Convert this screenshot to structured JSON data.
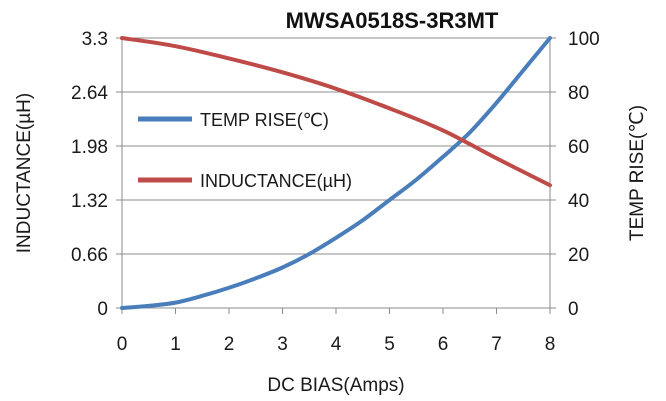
{
  "chart_data": {
    "type": "line",
    "title": "MWSA0518S-3R3MT",
    "xlabel": "DC  BIAS(Amps)",
    "ylabel_left": "INDUCTANCE(µH)",
    "ylabel_right": "TEMP RISE(℃)",
    "xlim": [
      0,
      8
    ],
    "ylim_left": [
      0,
      3.3
    ],
    "ylim_right": [
      0,
      100
    ],
    "x_ticks": [
      "0",
      "1",
      "2",
      "3",
      "4",
      "5",
      "6",
      "7",
      "8"
    ],
    "y_left_ticks": [
      "0",
      "0.66",
      "1.32",
      "1.98",
      "2.64",
      "3.3"
    ],
    "y_right_ticks": [
      "0",
      "20",
      "40",
      "60",
      "80",
      "100"
    ],
    "grid": true,
    "legend_placement": "left",
    "series": [
      {
        "name": "TEMP RISE(℃)",
        "axis": "right",
        "color": "#4a7ebb",
        "x": [
          0,
          0.5,
          1,
          1.5,
          2,
          2.5,
          3,
          3.5,
          4,
          4.5,
          5,
          5.5,
          6,
          6.5,
          7,
          7.5,
          8
        ],
        "y": [
          0,
          0.8,
          2,
          4.5,
          7.5,
          11,
          15,
          20,
          26,
          32.5,
          40,
          47.5,
          56,
          65,
          76,
          88,
          100
        ]
      },
      {
        "name": "INDUCTANCE(µH)",
        "axis": "left",
        "color": "#be4b48",
        "x": [
          0,
          1,
          2,
          3,
          4,
          5,
          6,
          7,
          8
        ],
        "y": [
          3.3,
          3.2,
          3.05,
          2.88,
          2.68,
          2.44,
          2.17,
          1.83,
          1.5
        ]
      }
    ]
  }
}
